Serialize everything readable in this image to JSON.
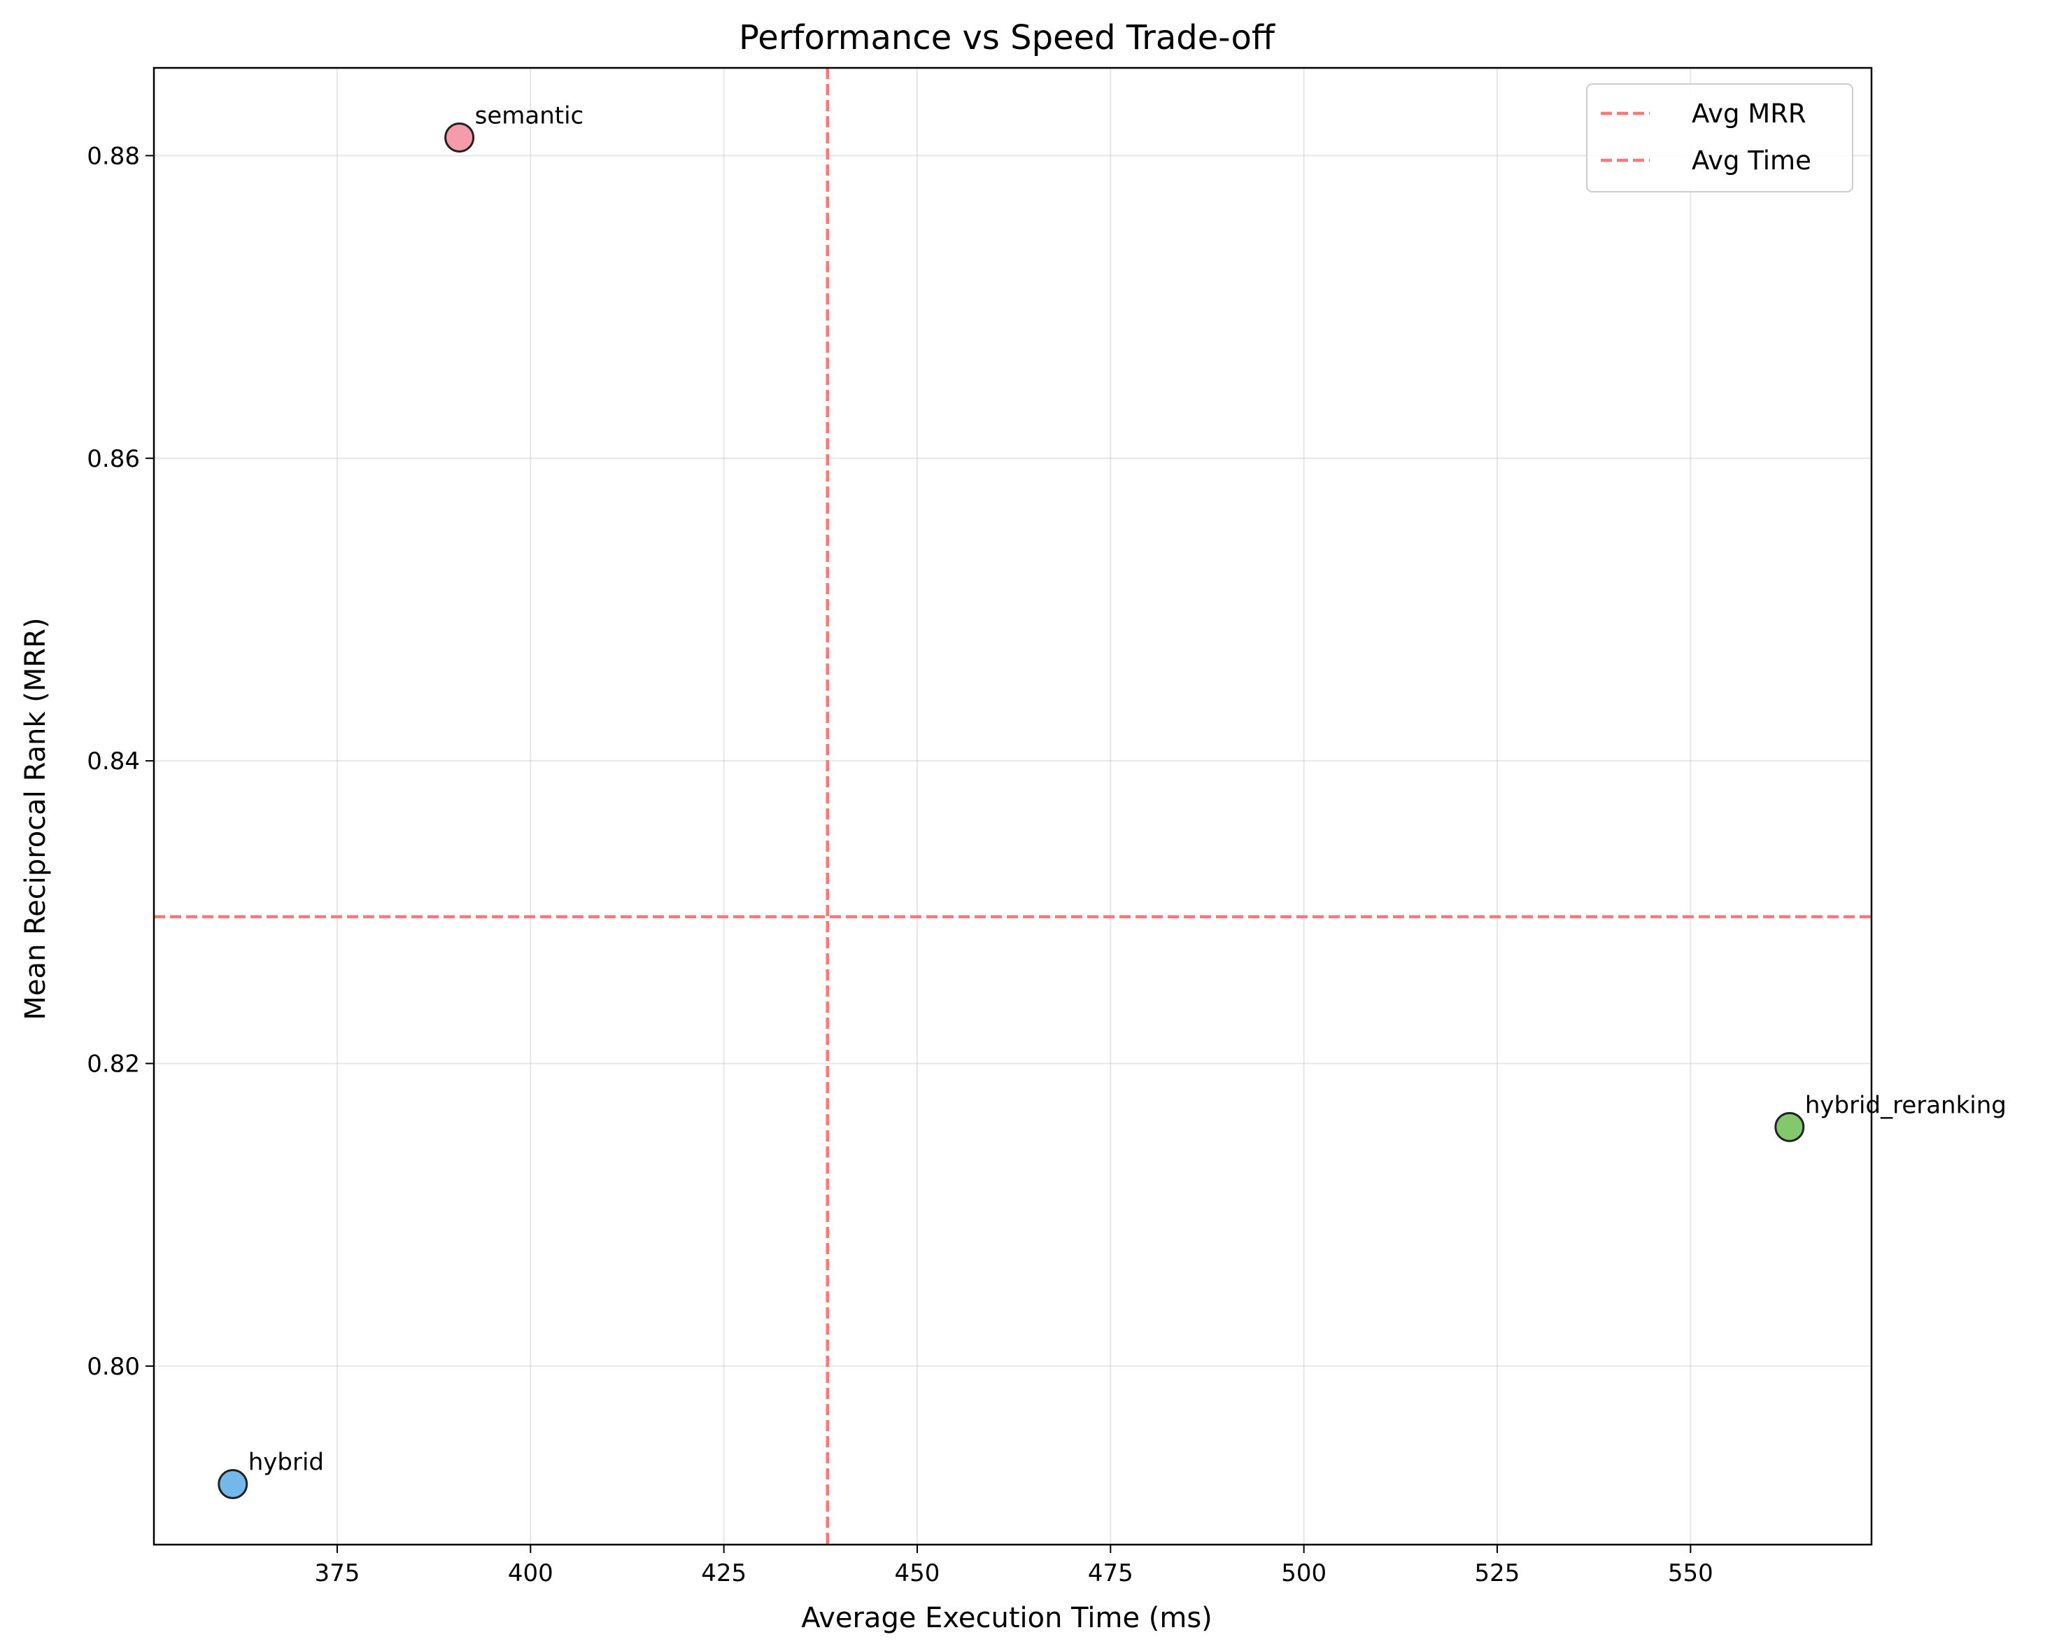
{
  "chart_data": {
    "type": "scatter",
    "title": "Performance vs Speed Trade-off",
    "xlabel": "Average Execution Time (ms)",
    "ylabel": "Mean Reciprocal Rank (MRR)",
    "xlim": [
      351.3,
      573.4
    ],
    "ylim": [
      0.7882,
      0.8858
    ],
    "xticks": [
      375,
      400,
      425,
      450,
      475,
      500,
      525,
      550
    ],
    "yticks": [
      0.8,
      0.82,
      0.84,
      0.86,
      0.88
    ],
    "xtick_labels": [
      "375",
      "400",
      "425",
      "450",
      "475",
      "500",
      "525",
      "550"
    ],
    "ytick_labels": [
      "0.80",
      "0.82",
      "0.84",
      "0.86",
      "0.88"
    ],
    "grid": true,
    "legend_position": "top-right",
    "points": [
      {
        "label": "semantic",
        "x": 390.8,
        "y": 0.8812,
        "color": "#f4899a"
      },
      {
        "label": "hybrid",
        "x": 361.5,
        "y": 0.7922,
        "color": "#5aace6"
      },
      {
        "label": "hybrid_reranking",
        "x": 562.8,
        "y": 0.8158,
        "color": "#6fbe55"
      }
    ],
    "reference_lines": [
      {
        "name": "Avg MRR",
        "orientation": "horizontal",
        "value": 0.8297,
        "color": "#ff7777",
        "style": "dashed"
      },
      {
        "name": "Avg Time",
        "orientation": "vertical",
        "value": 438.4,
        "color": "#ff7777",
        "style": "dashed"
      }
    ],
    "legend": [
      "Avg MRR",
      "Avg Time"
    ]
  }
}
